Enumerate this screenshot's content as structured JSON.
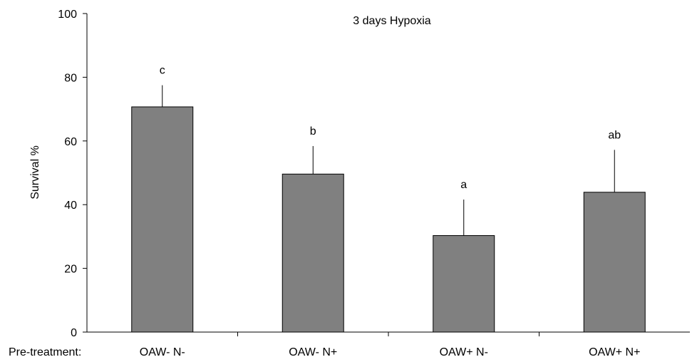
{
  "chart_data": {
    "type": "bar",
    "title": "3 days Hypoxia",
    "xlabel": "Pre-treatment:",
    "ylabel": "Survival %",
    "categories": [
      "OAW- N-",
      "OAW- N+",
      "OAW+ N-",
      "OAW+ N+"
    ],
    "values": [
      70.7,
      49.6,
      30.3,
      43.9
    ],
    "errors": [
      6.8,
      8.8,
      11.3,
      13.3
    ],
    "significance": [
      "c",
      "b",
      "a",
      "ab"
    ],
    "ylim": [
      0,
      100
    ],
    "yticks": [
      0,
      20,
      40,
      60,
      80,
      100
    ],
    "grid": false,
    "bar_color": "#808080",
    "bar_edge_color": "#000000"
  }
}
